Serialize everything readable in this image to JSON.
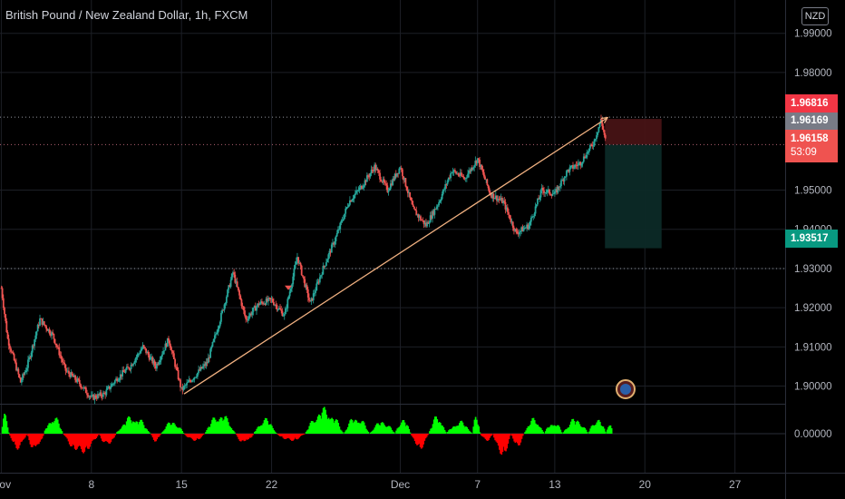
{
  "header": {
    "title": "British Pound / New Zealand Dollar, 1h, FXCM",
    "currency_badge": "NZD"
  },
  "price_tags": {
    "target_high": "1.96816",
    "last_close": "1.96169",
    "current_price": "1.96158",
    "countdown": "53:09",
    "target_low": "1.93517"
  },
  "colors": {
    "background": "#000000",
    "up": "#26a69a",
    "down": "#ef5350",
    "trendline": "#f0b080",
    "stop_zone": "#4a1416",
    "target_zone": "#0c2a27",
    "osc_up": "#00ff00",
    "osc_down": "#ff0000",
    "target_high_tag": "#f23645",
    "last_close_tag": "#787b86",
    "current_tag": "#ef5350",
    "target_low_tag": "#089981"
  },
  "chart_data": {
    "type": "candlestick",
    "series_name": "",
    "y_axis_ticks": [
      "1.99000",
      "1.98000",
      "1.96816",
      "1.95000",
      "1.94000",
      "1.93000",
      "1.92000",
      "1.91000",
      "1.90000"
    ],
    "y_axis_tick_values": [
      1.99,
      1.98,
      1.95,
      1.94,
      1.93,
      1.92,
      1.91,
      1.9
    ],
    "ylim": [
      1.8955,
      1.9985
    ],
    "x_axis_ticks": [
      "Nov",
      "8",
      "15",
      "22",
      "Dec",
      "7",
      "13",
      "20",
      "27"
    ],
    "x_axis_tick_days": [
      1,
      8,
      15,
      22,
      32,
      38,
      44,
      51,
      58
    ],
    "xlim_days": [
      0.9,
      61.9
    ],
    "price_path": [
      [
        1.0,
        1.925
      ],
      [
        1.5,
        1.912
      ],
      [
        2.5,
        1.901
      ],
      [
        3.0,
        1.905
      ],
      [
        4.0,
        1.917
      ],
      [
        5.0,
        1.913
      ],
      [
        6.0,
        1.904
      ],
      [
        7.0,
        1.901
      ],
      [
        8.0,
        1.897
      ],
      [
        9.0,
        1.898
      ],
      [
        10.0,
        1.902
      ],
      [
        11.0,
        1.905
      ],
      [
        12.0,
        1.91
      ],
      [
        13.0,
        1.905
      ],
      [
        14.0,
        1.912
      ],
      [
        15.0,
        1.899
      ],
      [
        17.0,
        1.906
      ],
      [
        18.0,
        1.917
      ],
      [
        19.0,
        1.929
      ],
      [
        20.0,
        1.917
      ],
      [
        21.0,
        1.921
      ],
      [
        22.0,
        1.922
      ],
      [
        23.0,
        1.918
      ],
      [
        24.0,
        1.933
      ],
      [
        25.0,
        1.921
      ],
      [
        26.0,
        1.93
      ],
      [
        27.0,
        1.938
      ],
      [
        28.0,
        1.947
      ],
      [
        29.0,
        1.951
      ],
      [
        30.0,
        1.956
      ],
      [
        31.0,
        1.95
      ],
      [
        32.0,
        1.956
      ],
      [
        33.0,
        1.945
      ],
      [
        34.0,
        1.941
      ],
      [
        35.0,
        1.947
      ],
      [
        36.0,
        1.955
      ],
      [
        37.0,
        1.953
      ],
      [
        38.0,
        1.958
      ],
      [
        39.0,
        1.949
      ],
      [
        40.0,
        1.947
      ],
      [
        41.0,
        1.939
      ],
      [
        42.0,
        1.941
      ],
      [
        43.0,
        1.95
      ],
      [
        44.0,
        1.949
      ],
      [
        45.0,
        1.955
      ],
      [
        46.0,
        1.957
      ],
      [
        47.0,
        1.962
      ],
      [
        47.6,
        1.968
      ],
      [
        48.0,
        1.9616
      ]
    ],
    "oscillator": {
      "zero_label": "0.00000",
      "zero_value": 0.0,
      "segments": [
        [
          1.0,
          0.8
        ],
        [
          1.6,
          -0.6
        ],
        [
          3.0,
          -0.7
        ],
        [
          4.3,
          0.7
        ],
        [
          5.8,
          -0.8
        ],
        [
          8.6,
          -0.5
        ],
        [
          9.9,
          0.7
        ],
        [
          12.6,
          -0.3
        ],
        [
          13.4,
          0.5
        ],
        [
          15.2,
          -0.3
        ],
        [
          16.8,
          0.8
        ],
        [
          19.2,
          -0.4
        ],
        [
          20.6,
          0.6
        ],
        [
          22.4,
          -0.3
        ],
        [
          24.6,
          1.0
        ],
        [
          27.6,
          0.7
        ],
        [
          29.6,
          0.5
        ],
        [
          31.6,
          0.6
        ],
        [
          32.8,
          -0.6
        ],
        [
          34.2,
          0.7
        ],
        [
          35.6,
          0.5
        ],
        [
          37.6,
          0.7
        ],
        [
          38.2,
          -0.3
        ],
        [
          39.2,
          -0.9
        ],
        [
          40.6,
          -0.5
        ],
        [
          41.6,
          0.6
        ],
        [
          43.2,
          0.5
        ],
        [
          44.6,
          0.6
        ],
        [
          46.6,
          0.6
        ],
        [
          48.0,
          0.5
        ]
      ]
    },
    "trendline": {
      "from": [
        15.2,
        1.898
      ],
      "to": [
        48.1,
        1.9685
      ]
    },
    "horizontal_lines": [
      1.9686,
      1.9616,
      1.93
    ],
    "position_tool": {
      "start_day": 47.9,
      "end_day": 52.3,
      "entry": 1.9616,
      "stop": 1.96816,
      "target": 1.93517
    },
    "marker": {
      "day": 23.3,
      "value": 1.9245
    }
  }
}
